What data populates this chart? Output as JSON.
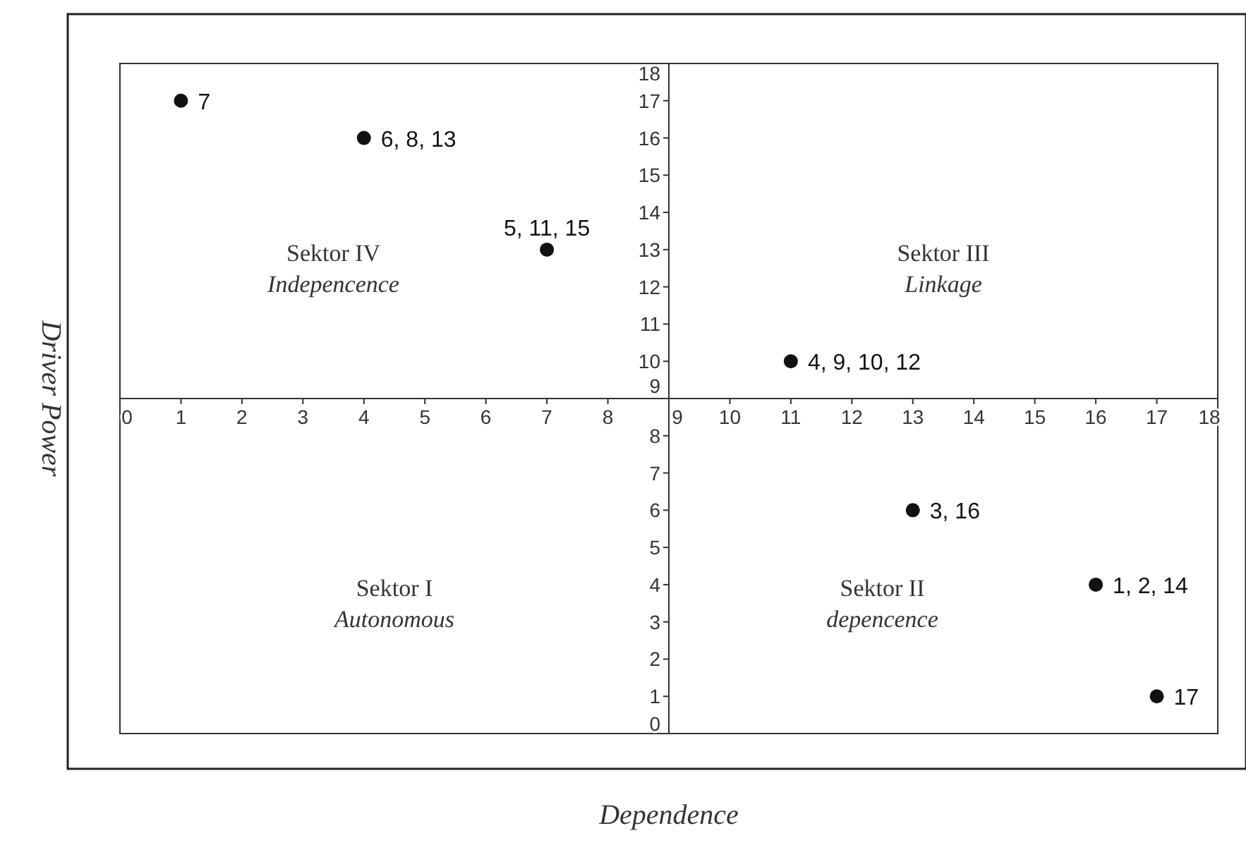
{
  "chart_data": {
    "type": "scatter",
    "xlabel": "Dependence",
    "ylabel": "Driver Power",
    "x": [
      1,
      4,
      7,
      11,
      13,
      16,
      17
    ],
    "values": [
      17,
      16,
      13,
      10,
      6,
      4,
      1
    ],
    "color": "#111111",
    "marker": "circle",
    "grid": false,
    "xlim": [
      0,
      18
    ],
    "ylim": [
      0,
      18
    ],
    "xticks": [
      0,
      1,
      2,
      3,
      4,
      5,
      6,
      7,
      8,
      9,
      10,
      11,
      12,
      13,
      14,
      15,
      16,
      17,
      18
    ],
    "yticks": [
      0,
      1,
      2,
      3,
      4,
      5,
      6,
      7,
      8,
      9,
      10,
      11,
      12,
      13,
      14,
      15,
      16,
      17,
      18
    ],
    "annotations": [
      {
        "text": "7",
        "x": 1,
        "y": 17
      },
      {
        "text": "6, 8, 13",
        "x": 4,
        "y": 16
      },
      {
        "text": "5, 11, 15",
        "x": 7,
        "y": 13
      },
      {
        "text": "4, 9, 10, 12",
        "x": 11,
        "y": 10
      },
      {
        "text": "3, 16",
        "x": 13,
        "y": 6
      },
      {
        "text": "1, 2, 14",
        "x": 16,
        "y": 4
      },
      {
        "text": "17",
        "x": 17,
        "y": 1
      },
      "Sektor IV\nIndepencence",
      "Sektor III\nLinkage",
      "Sektor I\nAutonomous",
      "Sektor II\ndepencence"
    ]
  }
}
